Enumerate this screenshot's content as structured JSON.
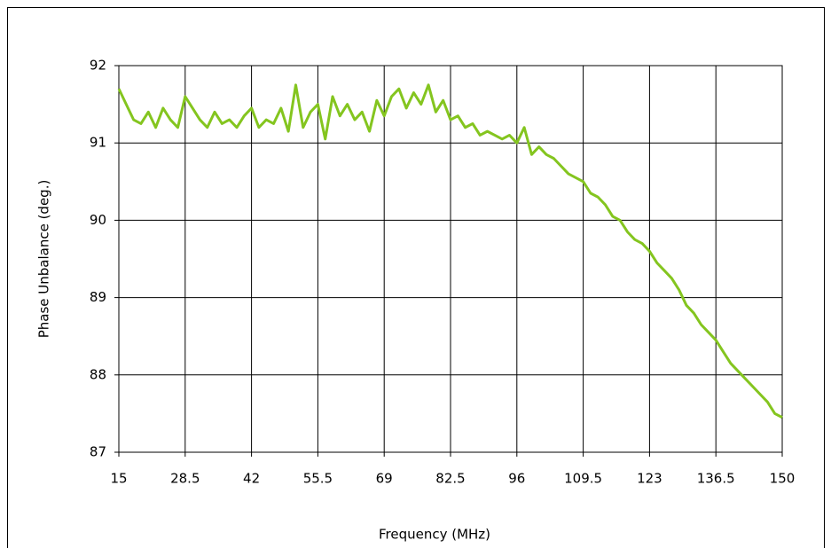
{
  "chart_data": {
    "type": "line",
    "xlabel": "Frequency (MHz)",
    "ylabel": "Phase Unbalance (deg.)",
    "x": [
      15,
      16.5,
      18,
      19.5,
      21,
      22.5,
      24,
      25.5,
      27,
      28.5,
      30,
      31.5,
      33,
      34.5,
      36,
      37.5,
      39,
      40.5,
      42,
      43.5,
      45,
      46.5,
      48,
      49.5,
      51,
      52.5,
      54,
      55.5,
      57,
      58.5,
      60,
      61.5,
      63,
      64.5,
      66,
      67.5,
      69,
      70.5,
      72,
      73.5,
      75,
      76.5,
      78,
      79.5,
      81,
      82.5,
      84,
      85.5,
      87,
      88.5,
      90,
      91.5,
      93,
      94.5,
      96,
      97.5,
      99,
      100.5,
      102,
      103.5,
      105,
      106.5,
      108,
      109.5,
      111,
      112.5,
      114,
      115.5,
      117,
      118.5,
      120,
      121.5,
      123,
      124.5,
      126,
      127.5,
      129,
      130.5,
      132,
      133.5,
      135,
      136.5,
      138,
      139.5,
      141,
      142.5,
      144,
      145.5,
      147,
      148.5,
      150
    ],
    "series": [
      {
        "name": "Phase Unbalance",
        "color": "#84c51f",
        "values": [
          91.7,
          91.5,
          91.3,
          91.25,
          91.4,
          91.2,
          91.45,
          91.3,
          91.2,
          91.6,
          91.45,
          91.3,
          91.2,
          91.4,
          91.25,
          91.3,
          91.2,
          91.35,
          91.45,
          91.2,
          91.3,
          91.25,
          91.45,
          91.15,
          91.75,
          91.2,
          91.4,
          91.5,
          91.05,
          91.6,
          91.35,
          91.5,
          91.3,
          91.4,
          91.15,
          91.55,
          91.35,
          91.6,
          91.7,
          91.45,
          91.65,
          91.5,
          91.75,
          91.4,
          91.55,
          91.3,
          91.35,
          91.2,
          91.25,
          91.1,
          91.15,
          91.1,
          91.05,
          91.1,
          91.0,
          91.2,
          90.85,
          90.95,
          90.85,
          90.8,
          90.7,
          90.6,
          90.55,
          90.5,
          90.35,
          90.3,
          90.2,
          90.05,
          90.0,
          89.85,
          89.75,
          89.7,
          89.6,
          89.45,
          89.35,
          89.25,
          89.1,
          88.9,
          88.8,
          88.65,
          88.55,
          88.45,
          88.3,
          88.15,
          88.05,
          87.95,
          87.85,
          87.75,
          87.65,
          87.5,
          87.45
        ]
      }
    ],
    "xlim": [
      15,
      150
    ],
    "xticks": [
      15,
      28.5,
      42,
      55.5,
      69,
      82.5,
      96,
      109.5,
      123,
      136.5,
      150
    ],
    "ylim": [
      87,
      92
    ],
    "yticks": [
      87,
      88,
      89,
      90,
      91,
      92
    ],
    "grid": true
  }
}
